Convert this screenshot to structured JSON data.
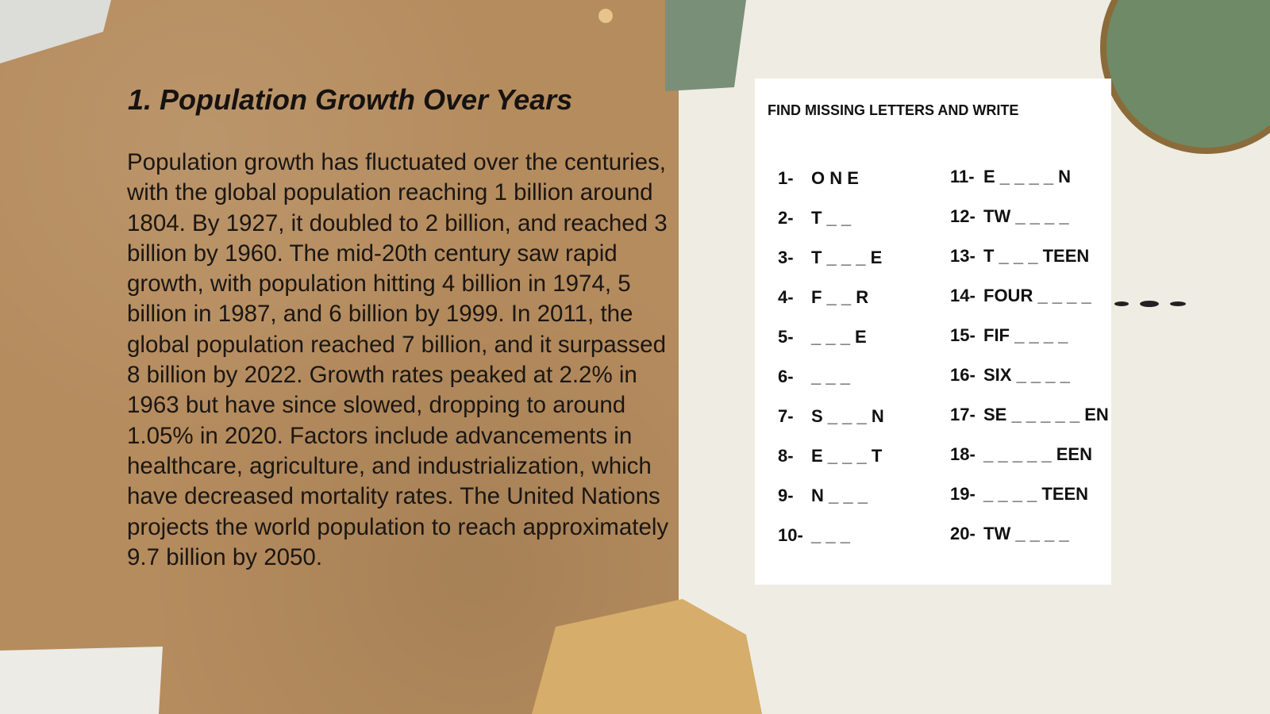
{
  "slide": {
    "title": "1. Population Growth Over Years",
    "body": "Population growth has fluctuated over the centuries, with the global population reaching 1 billion around 1804. By 1927, it doubled to 2 billion, and reached 3 billion by 1960. The mid-20th century saw rapid growth, with population hitting 4 billion in 1974, 5 billion in 1987, and 6 billion by 1999. In 2011, the global population reached 7 billion, and it surpassed 8 billion by 2022. Growth rates peaked at 2.2% in 1963 but have since slowed, dropping to around 1.05% in 2020. Factors include advancements in healthcare, agriculture, and industrialization, which have decreased mortality rates. The United Nations projects the world population to reach approximately 9.7 billion by 2050."
  },
  "worksheet": {
    "title": "FIND MISSING LETTERS AND WRITE",
    "items": [
      {
        "number": "1-",
        "text": "O N E"
      },
      {
        "number": "2-",
        "text": "T _ _"
      },
      {
        "number": "3-",
        "text": "T _ _ _ E"
      },
      {
        "number": "4-",
        "text": "F _ _ R"
      },
      {
        "number": "5-",
        "text": "_ _ _ E"
      },
      {
        "number": "6-",
        "text": "_ _ _"
      },
      {
        "number": "7-",
        "text": "S _ _ _ N"
      },
      {
        "number": "8-",
        "text": "E _ _ _ T"
      },
      {
        "number": "9-",
        "text": "N _ _ _"
      },
      {
        "number": "10-",
        "text": "_ _ _"
      },
      {
        "number": "11-",
        "text": "E _ _ _ _ N"
      },
      {
        "number": "12-",
        "text": "TW _ _ _ _"
      },
      {
        "number": "13-",
        "text": "T _ _ _ TEEN"
      },
      {
        "number": "14-",
        "text": "FOUR _ _ _ _"
      },
      {
        "number": "15-",
        "text": "FIF _ _ _ _"
      },
      {
        "number": "16-",
        "text": "SIX _ _ _ _"
      },
      {
        "number": "17-",
        "text": "SE _ _ _ _ _ EN"
      },
      {
        "number": "18-",
        "text": "_ _ _ _ _ EEN"
      },
      {
        "number": "19-",
        "text": "_ _ _ _ TEEN"
      },
      {
        "number": "20-",
        "text": "TW _ _ _ _"
      }
    ]
  }
}
